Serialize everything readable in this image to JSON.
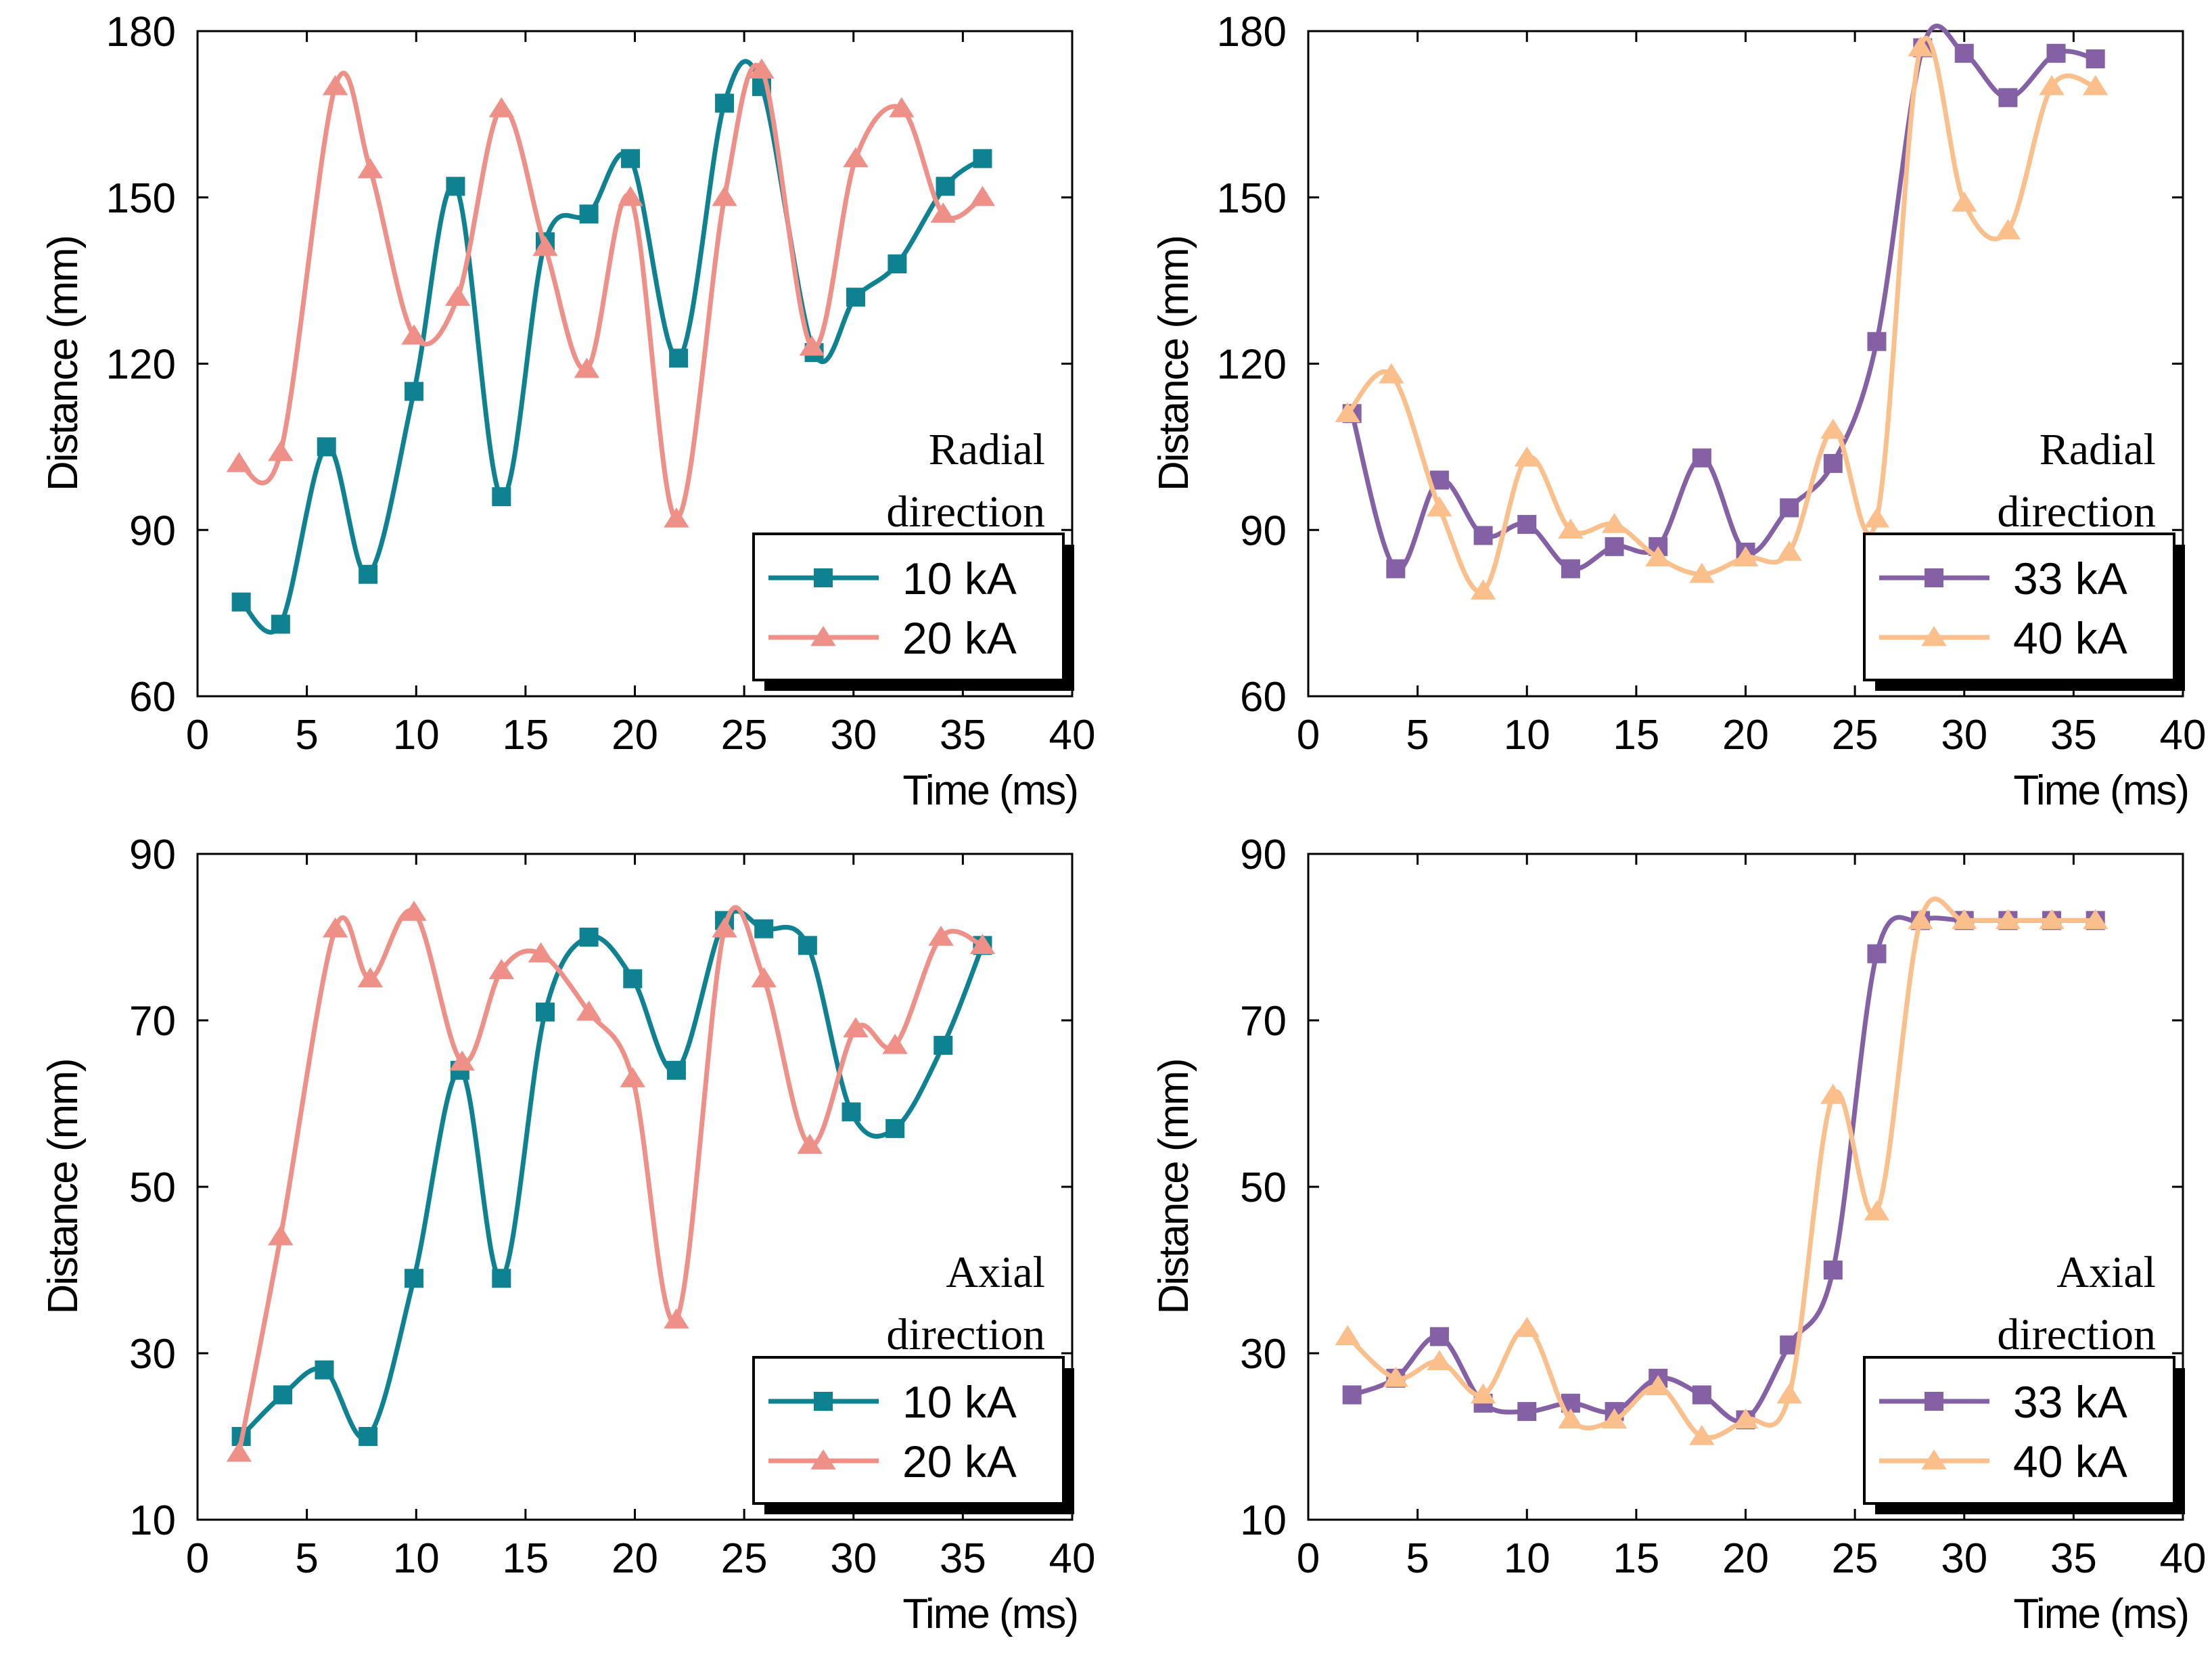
{
  "chart_data": [
    {
      "type": "line",
      "panel": "top-left",
      "xlabel": "Time (ms)",
      "ylabel": "Distance (mm)",
      "xlim": [
        0,
        40
      ],
      "ylim": [
        60,
        180
      ],
      "xticks": [
        0,
        5,
        10,
        15,
        20,
        25,
        30,
        35,
        40
      ],
      "yticks": [
        60,
        90,
        120,
        150,
        180
      ],
      "annotation": [
        "Radial",
        "direction"
      ],
      "legend_position": "bottom-right",
      "series": [
        {
          "name": "10 kA",
          "color": "#0e8290",
          "marker": "square",
          "x": [
            2,
            3.8,
            5.9,
            7.8,
            9.9,
            11.8,
            13.9,
            15.9,
            17.9,
            19.8,
            22,
            24.1,
            25.8,
            28.2,
            30.1,
            32,
            34.2,
            35.9
          ],
          "y": [
            77,
            73,
            105,
            82,
            115,
            152,
            96,
            142,
            147,
            157,
            121,
            167,
            170,
            122,
            132,
            138,
            152,
            157
          ]
        },
        {
          "name": "20 kA",
          "color": "#ee8f88",
          "marker": "triangle",
          "x": [
            1.9,
            3.8,
            6.3,
            7.9,
            9.9,
            11.9,
            13.9,
            15.9,
            17.8,
            19.8,
            21.9,
            24.1,
            25.8,
            28.1,
            30.1,
            32.2,
            34.1,
            35.9
          ],
          "y": [
            102,
            104,
            170,
            155,
            125,
            132,
            166,
            141,
            119,
            150,
            92,
            150,
            173,
            123,
            157,
            166,
            147,
            150
          ]
        }
      ]
    },
    {
      "type": "line",
      "panel": "top-right",
      "xlabel": "Time (ms)",
      "ylabel": "Distance (mm)",
      "xlim": [
        0,
        40
      ],
      "ylim": [
        60,
        180
      ],
      "xticks": [
        0,
        5,
        10,
        15,
        20,
        25,
        30,
        35,
        40
      ],
      "yticks": [
        60,
        90,
        120,
        150,
        180
      ],
      "annotation": [
        "Radial",
        "direction"
      ],
      "legend_position": "bottom-right",
      "series": [
        {
          "name": "33 kA",
          "color": "#8460a4",
          "marker": "square",
          "x": [
            2,
            4,
            6,
            8,
            10,
            12,
            14,
            16,
            18,
            20,
            22,
            24,
            26,
            28.1,
            30,
            32,
            34.2,
            36
          ],
          "y": [
            111,
            83,
            99,
            89,
            91,
            83,
            87,
            87,
            103,
            86,
            94,
            102,
            124,
            177,
            176,
            168,
            176,
            175
          ]
        },
        {
          "name": "40 kA",
          "color": "#fbbf8b",
          "marker": "triangle",
          "x": [
            1.8,
            3.8,
            6,
            8,
            10,
            12,
            14,
            16,
            18,
            20,
            22,
            24,
            26,
            28,
            30,
            32,
            34,
            36
          ],
          "y": [
            111,
            118,
            94,
            79,
            103,
            90,
            91,
            85,
            82,
            85,
            86,
            108,
            92,
            177,
            149,
            144,
            170,
            170
          ]
        }
      ]
    },
    {
      "type": "line",
      "panel": "bottom-left",
      "xlabel": "Time (ms)",
      "ylabel": "Distance (mm)",
      "xlim": [
        0,
        40
      ],
      "ylim": [
        10,
        90
      ],
      "xticks": [
        0,
        5,
        10,
        15,
        20,
        25,
        30,
        35,
        40
      ],
      "yticks": [
        10,
        30,
        50,
        70,
        90
      ],
      "annotation": [
        "Axial",
        "direction"
      ],
      "legend_position": "bottom-right",
      "series": [
        {
          "name": "10 kA",
          "color": "#0e8290",
          "marker": "square",
          "x": [
            2,
            3.9,
            5.8,
            7.8,
            9.9,
            12,
            13.9,
            15.9,
            17.9,
            19.9,
            21.9,
            24.1,
            25.9,
            27.9,
            29.9,
            31.9,
            34.1,
            35.9
          ],
          "y": [
            20,
            25,
            28,
            20,
            39,
            64,
            39,
            71,
            80,
            75,
            64,
            82,
            81,
            79,
            59,
            57,
            67,
            79
          ]
        },
        {
          "name": "20 kA",
          "color": "#ee8f88",
          "marker": "triangle",
          "x": [
            1.9,
            3.8,
            6.3,
            7.9,
            9.9,
            12.1,
            13.9,
            15.7,
            17.9,
            19.9,
            21.9,
            24.1,
            25.9,
            28,
            30.1,
            31.9,
            34,
            35.9
          ],
          "y": [
            18,
            44,
            81,
            75,
            83,
            65,
            76,
            78,
            71,
            63,
            34,
            81,
            75,
            55,
            69,
            67,
            80,
            79
          ]
        }
      ]
    },
    {
      "type": "line",
      "panel": "bottom-right",
      "xlabel": "Time (ms)",
      "ylabel": "Distance (mm)",
      "xlim": [
        0,
        40
      ],
      "ylim": [
        10,
        90
      ],
      "xticks": [
        0,
        5,
        10,
        15,
        20,
        25,
        30,
        35,
        40
      ],
      "yticks": [
        10,
        30,
        50,
        70,
        90
      ],
      "annotation": [
        "Axial",
        "direction"
      ],
      "legend_position": "bottom-right",
      "series": [
        {
          "name": "33 kA",
          "color": "#8460a4",
          "marker": "square",
          "x": [
            2,
            4,
            6,
            8,
            10,
            12,
            14,
            16,
            18,
            20,
            22,
            24,
            26,
            28,
            30,
            32,
            34,
            36
          ],
          "y": [
            25,
            27,
            32,
            24,
            23,
            24,
            23,
            27,
            25,
            22,
            31,
            40,
            78,
            82,
            82,
            82,
            82,
            82
          ]
        },
        {
          "name": "40 kA",
          "color": "#fbbf8b",
          "marker": "triangle",
          "x": [
            1.8,
            4,
            6,
            8,
            10,
            12,
            14,
            16,
            18,
            20,
            22,
            24,
            26,
            28,
            30,
            32,
            34,
            36
          ],
          "y": [
            32,
            27,
            29,
            25,
            33,
            22,
            22,
            26,
            20,
            22,
            25,
            61,
            47,
            82,
            82,
            82,
            82,
            82
          ]
        }
      ]
    }
  ]
}
